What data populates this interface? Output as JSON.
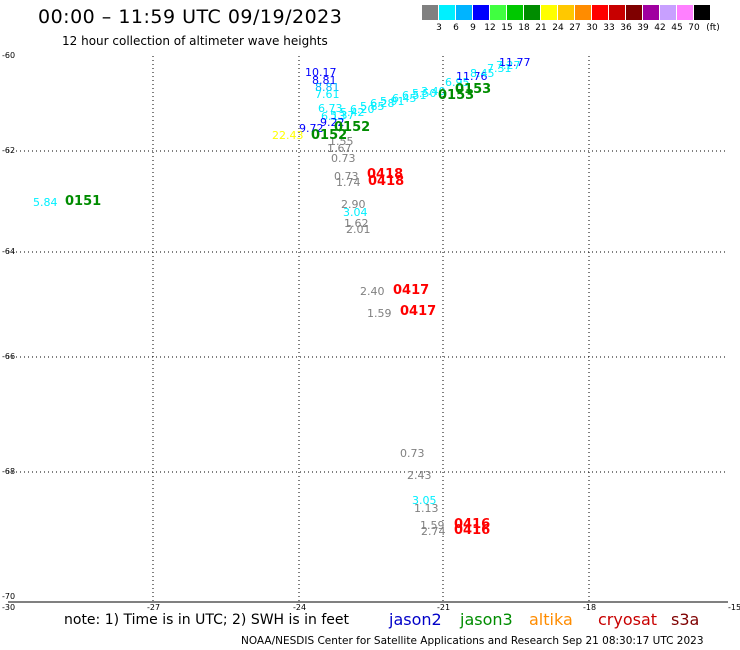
{
  "header": {
    "title": "00:00 – 11:59 UTC 09/19/2023",
    "subtitle": "12 hour collection of altimeter wave heights"
  },
  "colorbar": {
    "unit_label": "(ft)",
    "labels": [
      "3",
      "6",
      "9",
      "12",
      "15",
      "18",
      "21",
      "24",
      "27",
      "30",
      "33",
      "36",
      "39",
      "42",
      "45",
      "70"
    ],
    "colors": [
      "#808080",
      "#00f0ff",
      "#00b4ff",
      "#0000ff",
      "#40ff40",
      "#00c800",
      "#008c00",
      "#ffff00",
      "#ffc800",
      "#ff8c00",
      "#ff0000",
      "#c80000",
      "#7f0000",
      "#a000a0",
      "#c8a0ff",
      "#ff80ff",
      "#000000"
    ]
  },
  "axes": {
    "lat_labels": [
      "-60",
      "-62",
      "-64",
      "-66",
      "-68",
      "-70"
    ],
    "lon_labels": [
      "-30",
      "-27",
      "-24",
      "-21",
      "-18",
      "-15"
    ]
  },
  "observations": [
    {
      "text": "10.17",
      "color": "#0000ff"
    },
    {
      "text": "8.81",
      "color": "#0000ff"
    },
    {
      "text": "8.81",
      "color": "#00b4ff"
    },
    {
      "text": "7.61",
      "color": "#00f0ff"
    },
    {
      "text": "6.73",
      "color": "#00f0ff"
    },
    {
      "text": "6.13",
      "color": "#00f0ff"
    },
    {
      "text": "5.37",
      "color": "#00f0ff"
    },
    {
      "text": "5.42",
      "color": "#00f0ff"
    },
    {
      "text": "6.20",
      "color": "#00f0ff"
    },
    {
      "text": "5.85",
      "color": "#00f0ff"
    },
    {
      "text": "6.28",
      "color": "#00f0ff"
    },
    {
      "text": "5.91",
      "color": "#00f0ff"
    },
    {
      "text": "6.45",
      "color": "#00f0ff"
    },
    {
      "text": "6.51",
      "color": "#00f0ff"
    },
    {
      "text": "5.50",
      "color": "#00f0ff"
    },
    {
      "text": "3.40",
      "color": "#00f0ff"
    },
    {
      "text": "6.95",
      "color": "#00f0ff"
    },
    {
      "text": "11.76",
      "color": "#0000ff"
    },
    {
      "text": "8.45",
      "color": "#00f0ff"
    },
    {
      "text": "7.31",
      "color": "#00f0ff"
    },
    {
      "text": "7.27",
      "color": "#00f0ff"
    },
    {
      "text": "11.77",
      "color": "#0000ff"
    },
    {
      "text": "9.72",
      "color": "#0000ff"
    },
    {
      "text": "9.22",
      "color": "#0000ff"
    },
    {
      "text": "22.43",
      "color": "#ffff00"
    },
    {
      "text": "1.55",
      "color": "#808080"
    },
    {
      "text": "1.67",
      "color": "#808080"
    },
    {
      "text": "0.73",
      "color": "#808080"
    },
    {
      "text": "0.73",
      "color": "#808080"
    },
    {
      "text": "1.74",
      "color": "#808080"
    },
    {
      "text": "5.84",
      "color": "#00f0ff"
    },
    {
      "text": "2.90",
      "color": "#808080"
    },
    {
      "text": "3.04",
      "color": "#00f0ff"
    },
    {
      "text": "1.62",
      "color": "#808080"
    },
    {
      "text": "2.01",
      "color": "#808080"
    },
    {
      "text": "2.40",
      "color": "#808080"
    },
    {
      "text": "1.59",
      "color": "#808080"
    },
    {
      "text": "0.73",
      "color": "#808080"
    },
    {
      "text": "2.43",
      "color": "#808080"
    },
    {
      "text": "3.05",
      "color": "#00f0ff"
    },
    {
      "text": "1.13",
      "color": "#808080"
    },
    {
      "text": "1.59",
      "color": "#808080"
    },
    {
      "text": "2.74",
      "color": "#808080"
    }
  ],
  "pass_times": [
    {
      "text": "0153",
      "color": "#008c00"
    },
    {
      "text": "0153",
      "color": "#008c00"
    },
    {
      "text": "0152",
      "color": "#008c00"
    },
    {
      "text": "0152",
      "color": "#008c00"
    },
    {
      "text": "0151",
      "color": "#008c00"
    },
    {
      "text": "0418",
      "color": "#ff0000"
    },
    {
      "text": "0418",
      "color": "#ff0000"
    },
    {
      "text": "0417",
      "color": "#ff0000"
    },
    {
      "text": "0417",
      "color": "#ff0000"
    },
    {
      "text": "0416",
      "color": "#ff0000"
    },
    {
      "text": "0416",
      "color": "#ff0000"
    }
  ],
  "note": "note: 1) Time is in UTC; 2) SWH is in feet",
  "legend": [
    {
      "text": "jason2",
      "color": "#0000c8"
    },
    {
      "text": "jason3",
      "color": "#008c00"
    },
    {
      "text": "altika",
      "color": "#ff8c00"
    },
    {
      "text": "cryosat",
      "color": "#c80000"
    },
    {
      "text": "s3a",
      "color": "#7f0000"
    }
  ],
  "footer": "NOAA/NESDIS Center for Satellite Applications and Research    Sep 21 08:30:17 UTC 2023"
}
